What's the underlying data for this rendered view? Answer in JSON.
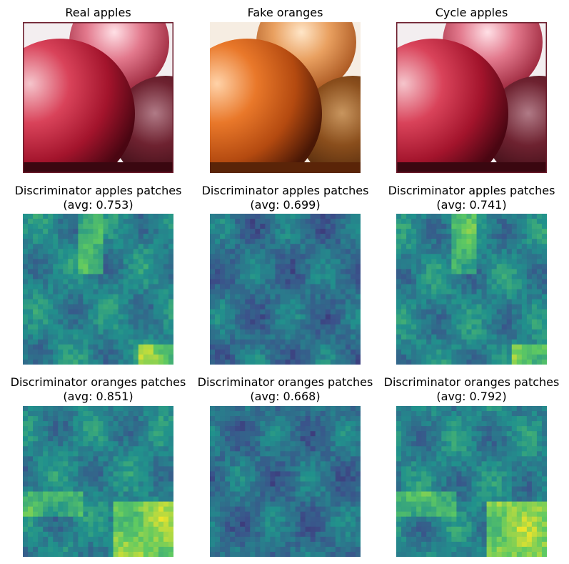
{
  "figure": {
    "rows": [
      {
        "kind": "photo",
        "panels": [
          {
            "id": "real-apples",
            "title": "Real apples",
            "hue": "red"
          },
          {
            "id": "fake-oranges",
            "title": "Fake oranges",
            "hue": "orange"
          },
          {
            "id": "cycle-apples",
            "title": "Cycle apples",
            "hue": "red"
          }
        ]
      },
      {
        "kind": "heatmap",
        "panels": [
          {
            "id": "disc-apples-real",
            "title": "Discriminator apples patches",
            "subtitle": "(avg: 0.753)"
          },
          {
            "id": "disc-apples-fake",
            "title": "Discriminator apples patches",
            "subtitle": "(avg: 0.699)"
          },
          {
            "id": "disc-apples-cycle",
            "title": "Discriminator apples patches",
            "subtitle": "(avg: 0.741)"
          }
        ]
      },
      {
        "kind": "heatmap",
        "panels": [
          {
            "id": "disc-oranges-real",
            "title": "Discriminator oranges patches",
            "subtitle": "(avg: 0.851)"
          },
          {
            "id": "disc-oranges-fake",
            "title": "Discriminator oranges patches",
            "subtitle": "(avg: 0.668)"
          },
          {
            "id": "disc-oranges-cycle",
            "title": "Discriminator oranges patches",
            "subtitle": "(avg: 0.792)"
          }
        ]
      }
    ],
    "colormap": "viridis"
  }
}
